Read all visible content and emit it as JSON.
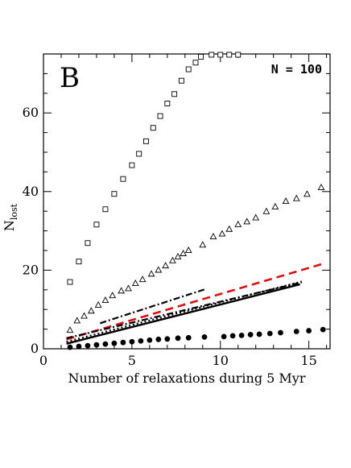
{
  "chart_data": {
    "type": "scatter",
    "panel_label": "B",
    "annotation": "N = 100",
    "xlabel": "Number of relaxations during 5 Myr",
    "ylabel_main": "N",
    "ylabel_sub": "lost",
    "xlim": [
      0,
      16.2
    ],
    "ylim": [
      0,
      75
    ],
    "x_ticks": [
      0,
      5,
      10,
      15
    ],
    "y_ticks": [
      0,
      20,
      40,
      60
    ],
    "grid": false,
    "legend": "none",
    "series": [
      {
        "style": "open-square",
        "color": "#000000",
        "points": [
          [
            1.5,
            17
          ],
          [
            2.0,
            22.2
          ],
          [
            2.5,
            26.9
          ],
          [
            3.0,
            31.6
          ],
          [
            3.5,
            35.5
          ],
          [
            4.0,
            39.4
          ],
          [
            4.5,
            43.2
          ],
          [
            5.0,
            46.7
          ],
          [
            5.4,
            49.6
          ],
          [
            5.8,
            52.8
          ],
          [
            6.2,
            56.2
          ],
          [
            6.6,
            59.2
          ],
          [
            7.0,
            62.4
          ],
          [
            7.4,
            64.8
          ],
          [
            7.8,
            68.2
          ],
          [
            8.2,
            71.1
          ],
          [
            8.6,
            72.8
          ],
          [
            8.9,
            74.3
          ],
          [
            9.5,
            74.8
          ],
          [
            10.0,
            74.8
          ],
          [
            10.5,
            74.8
          ],
          [
            11.0,
            74.8
          ]
        ]
      },
      {
        "style": "open-triangle",
        "color": "#000000",
        "points": [
          [
            1.5,
            4.7
          ],
          [
            1.9,
            7.1
          ],
          [
            2.3,
            8.3
          ],
          [
            2.7,
            9.6
          ],
          [
            3.1,
            11.1
          ],
          [
            3.5,
            12.3
          ],
          [
            3.9,
            13.5
          ],
          [
            4.4,
            14.7
          ],
          [
            4.8,
            15.3
          ],
          [
            5.2,
            16.6
          ],
          [
            5.6,
            17.6
          ],
          [
            6.1,
            19.0
          ],
          [
            6.5,
            20.0
          ],
          [
            6.9,
            21.1
          ],
          [
            7.3,
            22.4
          ],
          [
            7.6,
            23.4
          ],
          [
            7.9,
            24.2
          ],
          [
            8.2,
            25.0
          ],
          [
            9.0,
            26.4
          ],
          [
            9.6,
            28.5
          ],
          [
            10.1,
            29.2
          ],
          [
            10.5,
            30.4
          ],
          [
            11.0,
            31.6
          ],
          [
            11.5,
            32.3
          ],
          [
            12.0,
            33.3
          ],
          [
            12.6,
            34.9
          ],
          [
            13.1,
            36.1
          ],
          [
            13.7,
            37.5
          ],
          [
            14.3,
            38.2
          ],
          [
            14.9,
            39.3
          ],
          [
            15.7,
            41.0
          ]
        ]
      },
      {
        "style": "filled-circle",
        "color": "#000000",
        "points": [
          [
            1.5,
            0.4
          ],
          [
            2.0,
            0.6
          ],
          [
            2.5,
            0.8
          ],
          [
            3.0,
            1.0
          ],
          [
            3.5,
            1.2
          ],
          [
            4.0,
            1.4
          ],
          [
            4.5,
            1.6
          ],
          [
            5.0,
            1.8
          ],
          [
            5.5,
            2.0
          ],
          [
            6.0,
            2.2
          ],
          [
            6.5,
            2.4
          ],
          [
            7.0,
            2.5
          ],
          [
            7.6,
            2.7
          ],
          [
            8.2,
            2.8
          ],
          [
            9.1,
            3.0
          ],
          [
            10.2,
            3.1
          ],
          [
            10.7,
            3.3
          ],
          [
            11.2,
            3.4
          ],
          [
            11.7,
            3.6
          ],
          [
            12.2,
            3.7
          ],
          [
            12.8,
            3.9
          ],
          [
            13.4,
            4.1
          ],
          [
            14.3,
            4.4
          ],
          [
            15.0,
            4.6
          ],
          [
            15.8,
            4.9
          ]
        ]
      },
      {
        "style": "dashed-line",
        "color": "#dd1111",
        "points": [
          [
            1.3,
            2.4
          ],
          [
            15.7,
            21.5
          ]
        ]
      },
      {
        "style": "dash-dot-line",
        "color": "#000000",
        "points": [
          [
            3.2,
            6.5
          ],
          [
            9.1,
            15.1
          ]
        ]
      },
      {
        "style": "dotted-line",
        "color": "#000000",
        "points": [
          [
            1.3,
            1.8
          ],
          [
            14.6,
            17.1
          ]
        ]
      },
      {
        "style": "dash-dot-line",
        "color": "#000000",
        "points": [
          [
            1.3,
            2.7
          ],
          [
            14.6,
            16.9
          ]
        ]
      },
      {
        "style": "solid-line",
        "color": "#000000",
        "points": [
          [
            1.3,
            1.3
          ],
          [
            14.5,
            16.4
          ]
        ]
      }
    ]
  }
}
